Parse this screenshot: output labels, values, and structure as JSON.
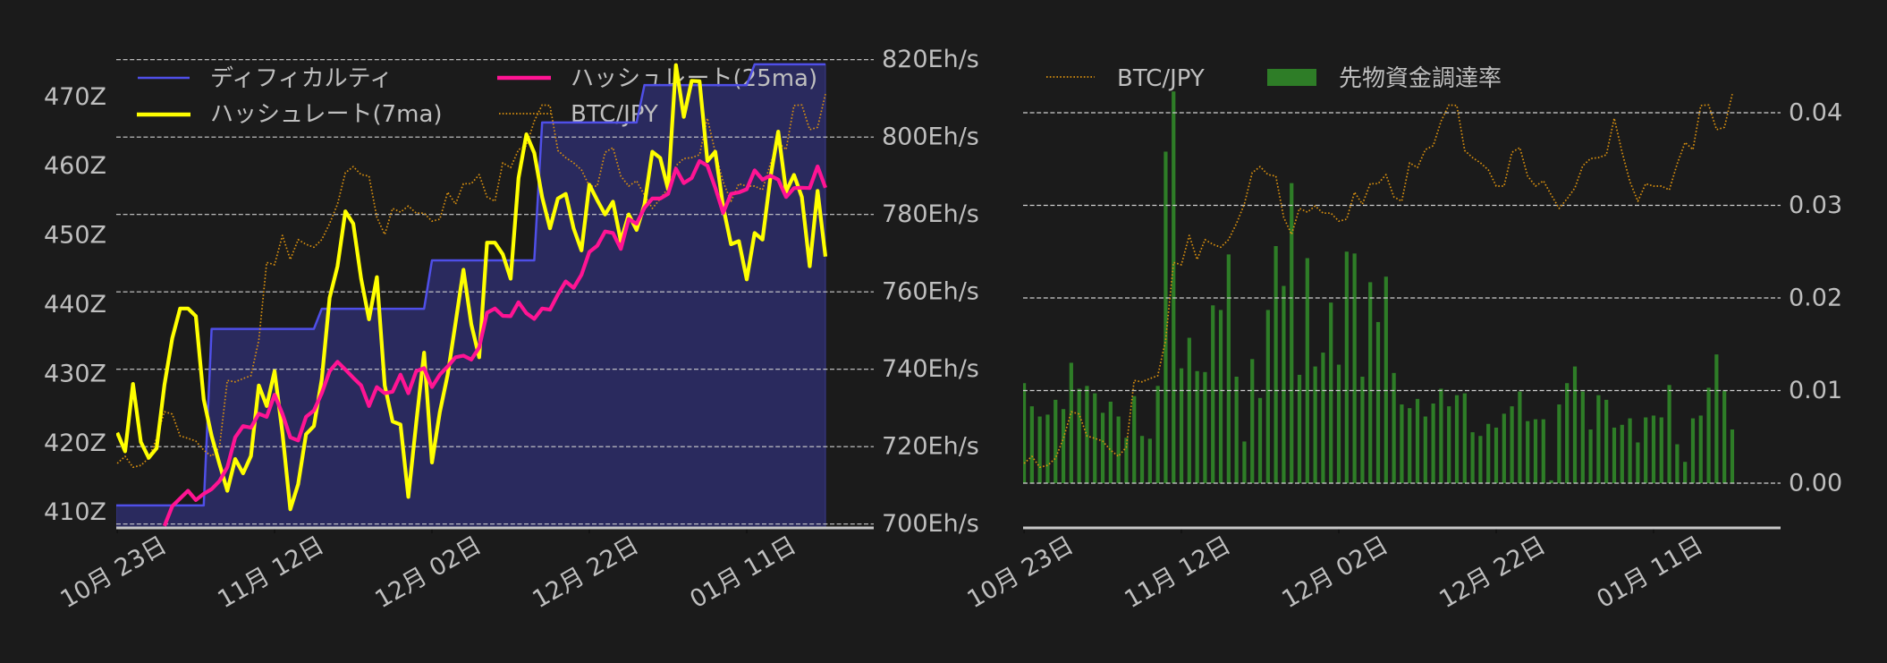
{
  "page": {
    "background": "#1b1b1b",
    "text_color": "#bfbfbf",
    "grid_color": "#cfcfcf",
    "axis_color": "#c8c8c8"
  },
  "chart_data": [
    {
      "id": "hashrate-difficulty-chart",
      "type": "line",
      "title": "",
      "xlabel": "",
      "x_dates": [
        "10/23",
        "10/24",
        "10/25",
        "10/26",
        "10/27",
        "10/28",
        "10/29",
        "10/30",
        "10/31",
        "11/01",
        "11/02",
        "11/03",
        "11/04",
        "11/05",
        "11/06",
        "11/07",
        "11/08",
        "11/09",
        "11/10",
        "11/11",
        "11/12",
        "11/13",
        "11/14",
        "11/15",
        "11/16",
        "11/17",
        "11/18",
        "11/19",
        "11/20",
        "11/21",
        "11/22",
        "11/23",
        "11/24",
        "11/25",
        "11/26",
        "11/27",
        "11/28",
        "11/29",
        "11/30",
        "12/01",
        "12/02",
        "12/03",
        "12/04",
        "12/05",
        "12/06",
        "12/07",
        "12/08",
        "12/09",
        "12/10",
        "12/11",
        "12/12",
        "12/13",
        "12/14",
        "12/15",
        "12/16",
        "12/17",
        "12/18",
        "12/19",
        "12/20",
        "12/21",
        "12/22",
        "12/23",
        "12/24",
        "12/25",
        "12/26",
        "12/27",
        "12/28",
        "12/29",
        "12/30",
        "12/31",
        "01/01",
        "01/02",
        "01/03",
        "01/04",
        "01/05",
        "01/06",
        "01/07",
        "01/08",
        "01/09",
        "01/10",
        "01/11",
        "01/12",
        "01/13",
        "01/14",
        "01/15",
        "01/16",
        "01/17",
        "01/18",
        "01/19",
        "01/20",
        "01/21"
      ],
      "xlim": [
        -0.12,
        96.14
      ],
      "xticks": [
        {
          "pos": 0,
          "label": "10月 23日"
        },
        {
          "pos": 20,
          "label": "11月 12日"
        },
        {
          "pos": 40,
          "label": "12月 02日"
        },
        {
          "pos": 60,
          "label": "12月 22日"
        },
        {
          "pos": 80,
          "label": "01月 11日"
        }
      ],
      "y_left": {
        "label": "",
        "lim": [
          407.76,
          476.5
        ],
        "ticks": [
          410,
          420,
          430,
          440,
          450,
          460,
          470
        ],
        "tick_labels": [
          "410Z",
          "420Z",
          "430Z",
          "440Z",
          "450Z",
          "460Z",
          "470Z"
        ]
      },
      "y_right": {
        "label": "",
        "lim": [
          699.0,
          822.0
        ],
        "ticks": [
          700,
          720,
          740,
          760,
          780,
          800,
          820
        ],
        "tick_labels": [
          "700Eh/s",
          "720Eh/s",
          "740Eh/s",
          "760Eh/s",
          "780Eh/s",
          "800Eh/s",
          "820Eh/s"
        ]
      },
      "y_hidden": {
        "note": "BTC/JPY drawn on an unlabeled axis; values are relative (0-100 of plot height)",
        "lim": [
          0,
          100.4
        ]
      },
      "grid_axis": "right",
      "grid": "horizontal dashed lines at right-axis ticks",
      "legend": [
        {
          "label": "ディフィカルティ",
          "color": "#4f4fe8",
          "style": "solid"
        },
        {
          "label": "ハッシュレート(7ma)",
          "color": "#ffff00",
          "style": "solid"
        },
        {
          "label": "ハッシュレート(25ma)",
          "color": "#ff1493",
          "style": "solid"
        },
        {
          "label": "BTC/JPY",
          "color": "#d9900f",
          "style": "dotted"
        }
      ],
      "legend_position": "upper left, 2 columns",
      "series": [
        {
          "id": "difficulty",
          "name": "ディフィカルティ",
          "axis": "left",
          "kind": "line",
          "color": "#4f4fe8",
          "width": 2.5,
          "fill": "#2a2a5e",
          "fill_edge": "#3a3a8c",
          "values": [
            411.0,
            411.0,
            411.0,
            411.0,
            411.0,
            411.0,
            411.0,
            411.0,
            411.0,
            411.0,
            411.0,
            411.0,
            436.5,
            436.5,
            436.5,
            436.5,
            436.5,
            436.5,
            436.5,
            436.5,
            436.5,
            436.5,
            436.5,
            436.5,
            436.5,
            436.5,
            439.4,
            439.4,
            439.4,
            439.4,
            439.4,
            439.4,
            439.4,
            439.4,
            439.4,
            439.4,
            439.4,
            439.4,
            439.4,
            439.4,
            446.4,
            446.4,
            446.4,
            446.4,
            446.4,
            446.4,
            446.4,
            446.4,
            446.4,
            446.4,
            446.4,
            446.4,
            446.4,
            446.4,
            466.3,
            466.3,
            466.3,
            466.3,
            466.3,
            466.3,
            466.3,
            466.3,
            466.3,
            466.3,
            466.3,
            466.3,
            466.3,
            471.7,
            471.7,
            471.7,
            471.7,
            471.7,
            471.7,
            471.7,
            471.7,
            471.7,
            471.7,
            471.7,
            471.7,
            471.7,
            471.7,
            474.7,
            474.7,
            474.7,
            474.7,
            474.7,
            474.7,
            474.7,
            474.7,
            474.7,
            474.7
          ]
        },
        {
          "id": "btc-jpy",
          "name": "BTC/JPY",
          "axis": "hidden",
          "kind": "line",
          "color": "#d9900f",
          "width": 1.7,
          "dash": "1.6 2.2",
          "values": [
            13.6,
            15.1,
            12.8,
            13.2,
            14.7,
            18.9,
            24.5,
            24.0,
            19.4,
            18.9,
            18.3,
            16.4,
            15.1,
            17.0,
            31.1,
            30.8,
            31.5,
            32.1,
            39.6,
            56.0,
            55.5,
            61.7,
            56.6,
            60.8,
            59.8,
            59.2,
            60.8,
            64.2,
            68.3,
            74.9,
            76.2,
            74.5,
            74.2,
            65.5,
            61.9,
            67.4,
            66.6,
            67.9,
            66.4,
            66.4,
            64.7,
            65.1,
            70.8,
            68.3,
            72.6,
            72.6,
            74.5,
            69.8,
            68.9,
            77.0,
            76.0,
            79.8,
            80.6,
            85.8,
            89.2,
            89.1,
            79.6,
            78.1,
            77.0,
            75.5,
            72.1,
            72.1,
            79.2,
            80.2,
            74.2,
            72.1,
            73.2,
            70.2,
            67.4,
            69.4,
            71.7,
            76.4,
            77.9,
            78.1,
            78.7,
            86.4,
            79.2,
            73.0,
            68.9,
            72.6,
            72.1,
            72.1,
            71.3,
            76.8,
            81.3,
            79.8,
            89.1,
            89.2,
            84.0,
            84.5,
            91.5
          ]
        },
        {
          "id": "hashrate-7ma",
          "name": "ハッシュレート(7ma)",
          "axis": "right",
          "kind": "line",
          "color": "#ffff00",
          "width": 4.2,
          "values": [
            723.6,
            718.8,
            736.2,
            721.2,
            717.1,
            719.6,
            736.0,
            748.0,
            755.7,
            755.7,
            753.7,
            732.2,
            722.8,
            715.5,
            708.6,
            716.8,
            713.1,
            717.6,
            735.8,
            730.5,
            739.5,
            723.6,
            703.8,
            710.3,
            723.2,
            725.3,
            737.4,
            758.5,
            766.6,
            780.8,
            777.6,
            763.4,
            752.9,
            763.8,
            735.8,
            726.5,
            725.7,
            707.0,
            726.1,
            744.3,
            715.9,
            728.9,
            738.6,
            752.0,
            765.7,
            751.6,
            743.1,
            772.7,
            772.7,
            769.7,
            763.4,
            789.4,
            800.7,
            795.9,
            784.5,
            776.4,
            784.1,
            785.3,
            776.4,
            770.7,
            787.7,
            783.7,
            780.0,
            783.3,
            773.1,
            780.0,
            776.0,
            782.5,
            796.2,
            794.6,
            786.5,
            818.6,
            805.2,
            814.5,
            814.4,
            793.8,
            796.2,
            782.0,
            772.3,
            773.1,
            763.2,
            775.2,
            773.5,
            789.4,
            801.4,
            785.9,
            790.2,
            784.5,
            766.6,
            786.1,
            769.1
          ]
        },
        {
          "id": "hashrate-25ma",
          "name": "ハッシュレート(25ma)",
          "axis": "right",
          "kind": "line",
          "color": "#ff1493",
          "width": 4.2,
          "values": [
            null,
            null,
            null,
            null,
            null,
            null,
            699.5,
            704.6,
            706.6,
            708.6,
            706.2,
            707.8,
            709.0,
            711.1,
            714.7,
            722.4,
            725.3,
            724.9,
            728.5,
            727.7,
            733.4,
            728.5,
            722.4,
            721.6,
            727.7,
            729.3,
            733.8,
            739.5,
            741.9,
            739.9,
            737.8,
            735.8,
            730.5,
            735.4,
            733.8,
            734.2,
            738.6,
            733.8,
            739.5,
            740.3,
            735.4,
            738.6,
            740.7,
            743.1,
            743.5,
            742.5,
            745.6,
            754.6,
            755.7,
            753.8,
            753.7,
            757.3,
            754.5,
            753.0,
            755.7,
            755.4,
            759.3,
            762.7,
            761.0,
            764.4,
            770.3,
            771.9,
            775.6,
            775.2,
            771.1,
            778.8,
            777.6,
            781.7,
            784.1,
            784.1,
            785.3,
            791.8,
            788.1,
            789.4,
            793.8,
            792.6,
            786.9,
            780.4,
            785.3,
            785.7,
            786.5,
            791.4,
            789.0,
            790.0,
            789.0,
            784.5,
            786.8,
            786.9,
            786.8,
            792.4,
            786.9
          ]
        }
      ]
    },
    {
      "id": "funding-rate-chart",
      "type": "bar",
      "title": "",
      "xlabel": "",
      "xlim": [
        -0.12,
        96.14
      ],
      "xticks": [
        {
          "pos": 0,
          "label": "10月 23日"
        },
        {
          "pos": 20,
          "label": "11月 12日"
        },
        {
          "pos": 40,
          "label": "12月 02日"
        },
        {
          "pos": 60,
          "label": "12月 22日"
        },
        {
          "pos": 80,
          "label": "01月 11日"
        }
      ],
      "y_left": null,
      "y_right": {
        "label": "",
        "lim": [
          -0.00483,
          0.04657
        ],
        "ticks": [
          0.0,
          0.01,
          0.02,
          0.03,
          0.04
        ],
        "tick_labels": [
          "0.00",
          "0.01",
          "0.02",
          "0.03",
          "0.04"
        ]
      },
      "y_hidden": {
        "note": "BTC/JPY drawn on an unlabeled axis; values are relative (0-100 of plot height)",
        "lim": [
          0,
          100.4
        ]
      },
      "grid_axis": "right",
      "grid": "horizontal dashed lines at right-axis ticks",
      "legend": [
        {
          "label": "BTC/JPY",
          "color": "#d9900f",
          "style": "dotted"
        },
        {
          "label": "先物資金調達率",
          "color": "#2e7d27",
          "style": "patch"
        }
      ],
      "legend_position": "upper left, 2 columns",
      "series": [
        {
          "id": "funding-rate",
          "name": "先物資金調達率",
          "axis": "right",
          "kind": "bar",
          "color": "#2e7d27",
          "bar_width_days": 0.48,
          "values": [
            0.0108,
            0.0083,
            0.0072,
            0.0074,
            0.009,
            0.008,
            0.013,
            0.0102,
            0.0105,
            0.0097,
            0.0076,
            0.0088,
            0.0072,
            0.0049,
            0.0094,
            0.0051,
            0.0048,
            0.0105,
            0.0358,
            0.0423,
            0.0124,
            0.0157,
            0.0121,
            0.012,
            0.0192,
            0.0187,
            0.0247,
            0.0115,
            0.0045,
            0.0134,
            0.0092,
            0.0187,
            0.0256,
            0.0213,
            0.0324,
            0.0117,
            0.0243,
            0.0126,
            0.0141,
            0.0195,
            0.0128,
            0.025,
            0.0248,
            0.0115,
            0.0217,
            0.0174,
            0.0223,
            0.0119,
            0.0085,
            0.0081,
            0.0091,
            0.0072,
            0.0086,
            0.0102,
            0.0083,
            0.0095,
            0.0097,
            0.0055,
            0.0051,
            0.0064,
            0.006,
            0.0075,
            0.0083,
            0.0099,
            0.0067,
            0.0069,
            0.0069,
            0.0003,
            0.0085,
            0.0108,
            0.0126,
            0.0099,
            0.0058,
            0.0095,
            0.009,
            0.006,
            0.0063,
            0.007,
            0.0044,
            0.0071,
            0.0073,
            0.0071,
            0.0106,
            0.0042,
            0.0023,
            0.007,
            0.0073,
            0.0103,
            0.0139,
            0.01,
            0.0058
          ]
        },
        {
          "id": "btc-jpy",
          "name": "BTC/JPY",
          "axis": "hidden",
          "kind": "line",
          "color": "#d9900f",
          "width": 1.7,
          "dash": "1.6 2.2",
          "values": [
            13.6,
            15.1,
            12.8,
            13.2,
            14.7,
            18.9,
            24.5,
            24.0,
            19.4,
            18.9,
            18.3,
            16.4,
            15.1,
            17.0,
            31.1,
            30.8,
            31.5,
            32.1,
            39.6,
            56.0,
            55.5,
            61.7,
            56.6,
            60.8,
            59.8,
            59.2,
            60.8,
            64.2,
            68.3,
            74.9,
            76.2,
            74.5,
            74.2,
            65.5,
            61.9,
            67.4,
            66.6,
            67.9,
            66.4,
            66.4,
            64.7,
            65.1,
            70.8,
            68.3,
            72.6,
            72.6,
            74.5,
            69.8,
            68.9,
            77.0,
            76.0,
            79.8,
            80.6,
            85.8,
            89.2,
            89.1,
            79.6,
            78.1,
            77.0,
            75.5,
            72.1,
            72.1,
            79.2,
            80.2,
            74.2,
            72.1,
            73.2,
            70.2,
            67.4,
            69.4,
            71.7,
            76.4,
            77.9,
            78.1,
            78.7,
            86.4,
            79.2,
            73.0,
            68.9,
            72.6,
            72.1,
            72.1,
            71.3,
            76.8,
            81.3,
            79.8,
            89.1,
            89.2,
            84.0,
            84.5,
            91.5
          ]
        }
      ]
    }
  ]
}
